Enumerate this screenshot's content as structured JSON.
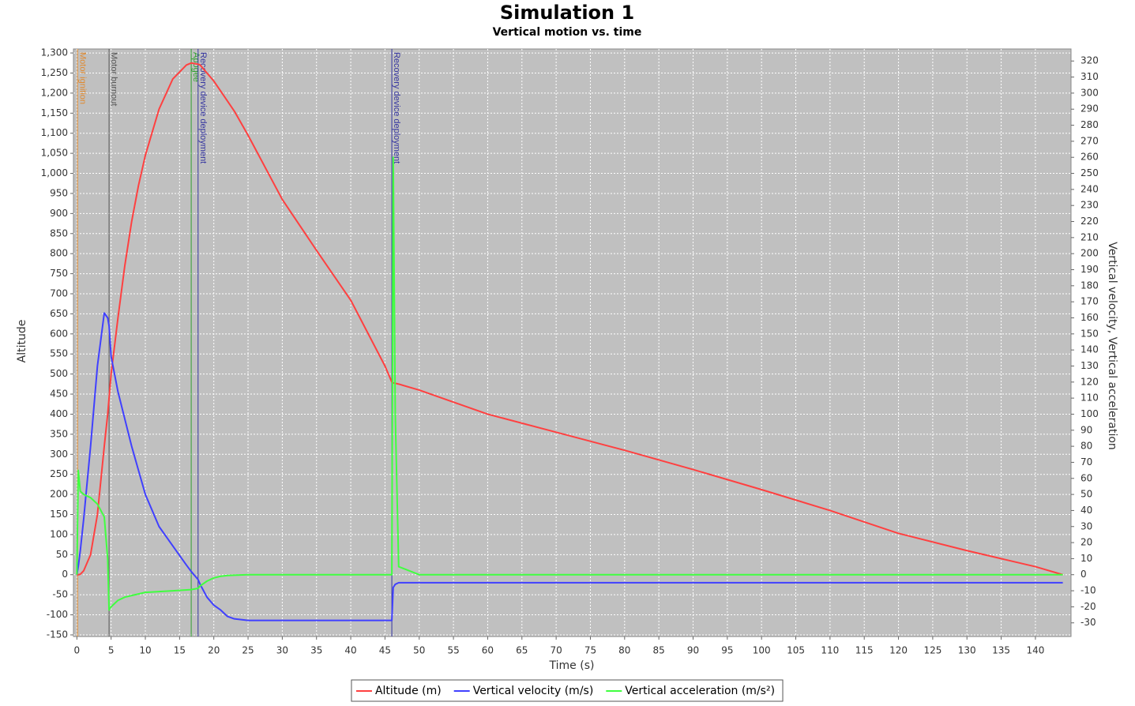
{
  "chart_data": {
    "type": "line",
    "title": "Simulation 1",
    "subtitle": "Vertical motion vs. time",
    "x_label": "Time (s)",
    "y_label": "Altitude",
    "y2_label": "Vertical velocity, Vertical acceleration",
    "x": [
      0,
      0.2,
      0.5,
      1,
      2,
      3,
      4,
      4.5,
      4.7,
      5,
      6,
      7,
      8,
      9,
      10,
      12,
      14,
      16,
      16.7,
      17.7,
      18,
      19,
      20,
      21,
      22,
      23,
      25,
      30,
      35,
      40,
      45,
      46,
      46.2,
      46.5,
      47,
      50,
      60,
      70,
      80,
      90,
      100,
      110,
      120,
      130,
      140,
      144
    ],
    "series": [
      {
        "name": "Altitude (m)",
        "color": "#ff4040",
        "axis": "y",
        "values": [
          0,
          0,
          1,
          10,
          50,
          150,
          320,
          400,
          440,
          500,
          640,
          770,
          880,
          970,
          1045,
          1160,
          1235,
          1270,
          1275,
          1272,
          1270,
          1250,
          1230,
          1205,
          1180,
          1155,
          1095,
          935,
          808,
          684,
          520,
          480,
          478,
          477,
          475,
          460,
          400,
          355,
          310,
          262,
          212,
          160,
          103,
          60,
          20,
          0
        ]
      },
      {
        "name": "Vertical velocity (m/s)",
        "color": "#4040ff",
        "axis": "y2",
        "values": [
          0,
          5,
          15,
          35,
          80,
          130,
          163,
          160,
          155,
          136,
          114,
          97,
          80,
          65,
          50,
          30,
          18,
          6,
          2,
          -3,
          -6,
          -14,
          -19,
          -22,
          -26,
          -27.5,
          -28.5,
          -28.5,
          -28.5,
          -28.5,
          -28.5,
          -28.5,
          -8,
          -6,
          -5,
          -5,
          -5,
          -5,
          -5,
          -5,
          -5,
          -5,
          -5,
          -5,
          -5,
          -5
        ]
      },
      {
        "name": "Vertical acceleration (m/s²)",
        "color": "#40ff40",
        "axis": "y2",
        "values": [
          0,
          65,
          52,
          50,
          48,
          44,
          36,
          10,
          -22,
          -20,
          -16,
          -14,
          -13,
          -12,
          -11,
          -10.5,
          -10,
          -9.5,
          -9.3,
          -8.5,
          -7,
          -4,
          -2,
          -1,
          -0.5,
          -0.3,
          0,
          0,
          0,
          0,
          0,
          0,
          260,
          100,
          5,
          0,
          0,
          0,
          0,
          0,
          0,
          0,
          0,
          0,
          0,
          0
        ]
      }
    ],
    "events": [
      {
        "x": 0.1,
        "label": "Motor ignition",
        "color": "#e08a30"
      },
      {
        "x": 4.7,
        "label": "Motor burnout",
        "color": "#555555"
      },
      {
        "x": 16.7,
        "label": "Apogee",
        "color": "#30a030"
      },
      {
        "x": 17.7,
        "label": "Recovery device deployment",
        "color": "#3535a0"
      },
      {
        "x": 46.0,
        "label": "Recovery device deployment",
        "color": "#3535a0"
      }
    ],
    "xlim": [
      -0.5,
      145.2
    ],
    "xticks": [
      0,
      5,
      10,
      15,
      20,
      25,
      30,
      35,
      40,
      45,
      50,
      55,
      60,
      65,
      70,
      75,
      80,
      85,
      90,
      95,
      100,
      105,
      110,
      115,
      120,
      125,
      130,
      135,
      140
    ],
    "ylim": [
      -154,
      1310
    ],
    "yticks": [
      -150,
      -100,
      -50,
      0,
      50,
      100,
      150,
      200,
      250,
      300,
      350,
      400,
      450,
      500,
      550,
      600,
      650,
      700,
      750,
      800,
      850,
      900,
      950,
      {
        "value": 1000,
        "label": "1,000"
      },
      {
        "value": 1050,
        "label": "1,050"
      },
      {
        "value": 1100,
        "label": "1,100"
      },
      {
        "value": 1150,
        "label": "1,150"
      },
      {
        "value": 1200,
        "label": "1,200"
      },
      {
        "value": 1250,
        "label": "1,250"
      },
      {
        "value": 1300,
        "label": "1,300"
      }
    ],
    "y2lim": [
      -38.5,
      327.5
    ],
    "y2ticks": [
      -30,
      -20,
      -10,
      0,
      10,
      20,
      30,
      40,
      50,
      60,
      70,
      80,
      90,
      100,
      110,
      120,
      130,
      140,
      150,
      160,
      170,
      180,
      190,
      200,
      210,
      220,
      230,
      240,
      250,
      260,
      270,
      280,
      290,
      300,
      310,
      320
    ],
    "grid": true,
    "background": "#c0c0c0"
  }
}
